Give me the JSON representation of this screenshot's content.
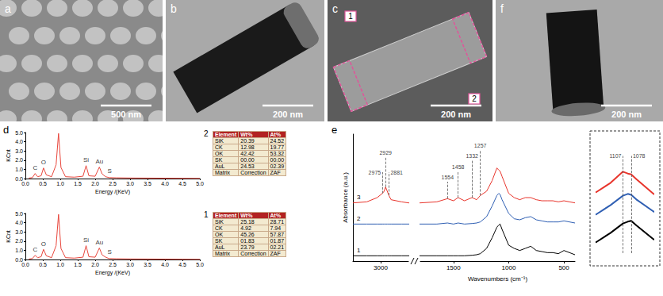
{
  "images": [
    {
      "label": "a",
      "scale_bar": "500 nm"
    },
    {
      "label": "b",
      "scale_bar": "200 nm"
    },
    {
      "label": "c",
      "scale_bar": "200 nm",
      "regions": [
        "1",
        "2"
      ]
    },
    {
      "label": "f",
      "scale_bar": "200 nm"
    }
  ],
  "chart_data": [
    {
      "panel": "d",
      "name": "2",
      "type": "line",
      "xlabel": "Energy /(KeV)",
      "ylabel": "KCnt",
      "color": "#e8463c",
      "xlim": [
        0,
        5
      ],
      "xticks": [
        {
          "value": 0,
          "label": "0.0"
        },
        {
          "value": 0.5,
          "label": "0.5"
        },
        {
          "value": 1,
          "label": "1.0"
        },
        {
          "value": 1.5,
          "label": "1.5"
        },
        {
          "value": 2,
          "label": "2.0"
        },
        {
          "value": 2.5,
          "label": "2.5"
        },
        {
          "value": 3,
          "label": "3.0"
        },
        {
          "value": 3.5,
          "label": "3.5"
        },
        {
          "value": 4,
          "label": "4.0"
        },
        {
          "value": 4.5,
          "label": "4.5"
        },
        {
          "value": 5,
          "label": "5.0"
        }
      ],
      "ylim": [
        0,
        5
      ],
      "yticks": [
        {
          "value": 0,
          "label": "0.0"
        },
        {
          "value": 1,
          "label": "1.0"
        },
        {
          "value": 2,
          "label": "2.0"
        },
        {
          "value": 3,
          "label": "3.0"
        },
        {
          "value": 4,
          "label": "4.0"
        },
        {
          "value": 5,
          "label": "5.0"
        }
      ],
      "x": [
        0.1,
        0.2,
        0.28,
        0.35,
        0.45,
        0.52,
        0.6,
        0.75,
        0.88,
        0.95,
        1.02,
        1.15,
        1.4,
        1.65,
        1.74,
        1.82,
        2.0,
        2.12,
        2.2,
        2.3,
        2.4,
        2.6,
        3.0,
        3.5,
        4.0,
        4.5,
        5.0
      ],
      "values": [
        0.05,
        0.1,
        0.55,
        0.2,
        0.3,
        1.15,
        0.4,
        0.2,
        1.5,
        4.9,
        1.2,
        0.2,
        0.15,
        0.25,
        1.4,
        0.3,
        0.25,
        1.25,
        0.5,
        0.2,
        0.1,
        0.08,
        0.06,
        0.05,
        0.04,
        0.03,
        0.02
      ],
      "peaks": [
        {
          "label": "C",
          "x": 0.28
        },
        {
          "label": "O",
          "x": 0.52
        },
        {
          "label": "Si",
          "x": 1.74
        },
        {
          "label": "Au",
          "x": 2.12
        },
        {
          "label": "S",
          "x": 2.3
        }
      ],
      "table": {
        "header": [
          "Element",
          "Wt%",
          "At%"
        ],
        "rows": [
          [
            "SiK",
            "20.39",
            "24.52"
          ],
          [
            "CK",
            "12.98",
            "19.77"
          ],
          [
            "OK",
            "42.42",
            "53.32"
          ],
          [
            "SK",
            "00.00",
            "00.00"
          ],
          [
            "AuL",
            "24.53",
            "02.39"
          ],
          [
            "Matrix",
            "Correction",
            "ZAF"
          ]
        ]
      }
    },
    {
      "name": "1",
      "type": "line",
      "xlabel": "Energy /(KeV)",
      "ylabel": "KCnt",
      "color": "#e8463c",
      "xlim": [
        0,
        5
      ],
      "xticks": [
        {
          "value": 0,
          "label": "0.0"
        },
        {
          "value": 0.5,
          "label": "0.5"
        },
        {
          "value": 1,
          "label": "1.0"
        },
        {
          "value": 1.5,
          "label": "1.5"
        },
        {
          "value": 2,
          "label": "2.0"
        },
        {
          "value": 2.5,
          "label": "2.5"
        },
        {
          "value": 3,
          "label": "3.0"
        },
        {
          "value": 3.5,
          "label": "3.5"
        },
        {
          "value": 4,
          "label": "4.0"
        },
        {
          "value": 4.5,
          "label": "4.5"
        },
        {
          "value": 5,
          "label": "5.0"
        }
      ],
      "ylim": [
        0,
        5
      ],
      "yticks": [
        {
          "value": 0,
          "label": "0.0"
        },
        {
          "value": 1,
          "label": "1.0"
        },
        {
          "value": 2,
          "label": "2.0"
        },
        {
          "value": 3,
          "label": "3.0"
        },
        {
          "value": 4,
          "label": "4.0"
        },
        {
          "value": 5,
          "label": "5.0"
        }
      ],
      "x": [
        0.1,
        0.2,
        0.28,
        0.35,
        0.45,
        0.52,
        0.6,
        0.75,
        0.88,
        0.95,
        1.02,
        1.15,
        1.4,
        1.65,
        1.74,
        1.82,
        2.0,
        2.12,
        2.2,
        2.3,
        2.4,
        2.6,
        3.0,
        3.5,
        4.0,
        4.5,
        5.0
      ],
      "values": [
        0.05,
        0.1,
        0.45,
        0.2,
        0.3,
        1.1,
        0.4,
        0.2,
        1.5,
        4.9,
        1.2,
        0.2,
        0.15,
        0.25,
        1.5,
        0.3,
        0.25,
        1.25,
        0.5,
        0.25,
        0.1,
        0.08,
        0.06,
        0.05,
        0.04,
        0.03,
        0.02
      ],
      "peaks": [
        {
          "label": "C",
          "x": 0.28
        },
        {
          "label": "O",
          "x": 0.52
        },
        {
          "label": "Si",
          "x": 1.74
        },
        {
          "label": "Au",
          "x": 2.12
        },
        {
          "label": "S",
          "x": 2.3
        }
      ],
      "table": {
        "header": [
          "Element",
          "Wt%",
          "At%"
        ],
        "rows": [
          [
            "SiK",
            "25.18",
            "28.71"
          ],
          [
            "CK",
            "4.92",
            "7.94"
          ],
          [
            "OK",
            "45.26",
            "57.87"
          ],
          [
            "SK",
            "01.83",
            "01.87"
          ],
          [
            "AuL",
            "23.79",
            "02.21"
          ],
          [
            "Matrix",
            "Correction",
            "ZAF"
          ]
        ]
      }
    },
    {
      "panel": "e",
      "type": "line",
      "xlabel": "Wavenumbers (cm⁻¹)",
      "ylabel": "Absorbance (a.u.)",
      "tick_labels": "x",
      "ylim": [
        0,
        1.2
      ],
      "segments": [
        {
          "xlim": [
            3400,
            2600
          ],
          "xticks": [
            3000
          ]
        },
        {
          "xlim": [
            1800,
            400
          ],
          "xticks": [
            1500,
            1000,
            500
          ]
        }
      ],
      "x": [
        3400,
        3200,
        3050,
        2975,
        2950,
        2929,
        2905,
        2881,
        2850,
        2700,
        2600,
        1800,
        1650,
        1554,
        1500,
        1458,
        1400,
        1332,
        1290,
        1257,
        1200,
        1150,
        1107,
        1090,
        1078,
        1060,
        1000,
        950,
        900,
        850,
        800,
        750,
        700,
        650,
        600,
        550,
        500,
        450,
        400
      ],
      "series": [
        {
          "name": "1",
          "color": "#000000",
          "values": [
            0.05,
            0.05,
            0.05,
            0.05,
            0.05,
            0.05,
            0.05,
            0.05,
            0.05,
            0.05,
            0.05,
            0.05,
            0.05,
            0.05,
            0.05,
            0.05,
            0.05,
            0.055,
            0.06,
            0.07,
            0.12,
            0.22,
            0.32,
            0.34,
            0.35,
            0.3,
            0.15,
            0.12,
            0.1,
            0.12,
            0.14,
            0.1,
            0.09,
            0.08,
            0.08,
            0.07,
            0.1,
            0.08,
            0.06
          ]
        },
        {
          "name": "2",
          "color": "#2f5fb3",
          "values": [
            0.35,
            0.35,
            0.35,
            0.35,
            0.35,
            0.35,
            0.35,
            0.35,
            0.35,
            0.35,
            0.35,
            0.35,
            0.35,
            0.36,
            0.35,
            0.36,
            0.35,
            0.355,
            0.36,
            0.37,
            0.42,
            0.52,
            0.62,
            0.64,
            0.63,
            0.58,
            0.45,
            0.4,
            0.39,
            0.41,
            0.42,
            0.39,
            0.38,
            0.37,
            0.37,
            0.37,
            0.38,
            0.37,
            0.36
          ]
        },
        {
          "name": "3",
          "color": "#e8352c",
          "values": [
            0.55,
            0.56,
            0.6,
            0.64,
            0.66,
            0.7,
            0.66,
            0.62,
            0.58,
            0.56,
            0.55,
            0.55,
            0.56,
            0.59,
            0.57,
            0.6,
            0.57,
            0.6,
            0.58,
            0.62,
            0.66,
            0.76,
            0.88,
            0.86,
            0.85,
            0.8,
            0.64,
            0.6,
            0.58,
            0.6,
            0.6,
            0.58,
            0.57,
            0.57,
            0.57,
            0.56,
            0.57,
            0.56,
            0.55
          ]
        }
      ],
      "annotations": [
        {
          "label": "2975",
          "x": 2975
        },
        {
          "label": "2929",
          "x": 2929
        },
        {
          "label": "2881",
          "x": 2881
        },
        {
          "label": "1554",
          "x": 1554
        },
        {
          "label": "1458",
          "x": 1458
        },
        {
          "label": "1332",
          "x": 1332
        },
        {
          "label": "1257",
          "x": 1257
        }
      ],
      "inset": {
        "xlim": [
          1200,
          1000
        ],
        "annotations": [
          {
            "label": "1107",
            "x": 1107
          },
          {
            "label": "1078",
            "x": 1078
          }
        ]
      }
    }
  ]
}
